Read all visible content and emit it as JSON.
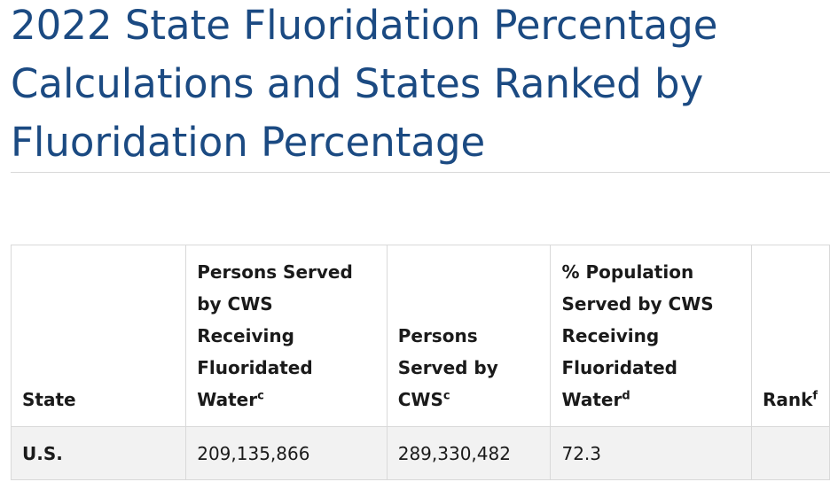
{
  "page": {
    "title": "2022 State Fluoridation Percentage Calculations and States Ranked by Fluoridation Percentage"
  },
  "table": {
    "headers": {
      "state": "State",
      "fluoridated": "Persons Served by CWS Receiving Fluoridated Water",
      "fluoridated_sup": "c",
      "served": "Persons Served by CWS",
      "served_sup": "c",
      "percent": "% Population Served by CWS Receiving Fluoridated Water",
      "percent_sup": "d",
      "rank": "Rank",
      "rank_sup": "f"
    },
    "rows": [
      {
        "state": "U.S.",
        "fluoridated": "209,135,866",
        "served": "289,330,482",
        "percent": "72.3",
        "rank": ""
      }
    ]
  },
  "colors": {
    "heading": "#1b4a82",
    "row_background": "#f2f2f2",
    "border": "#d9d9d9"
  }
}
